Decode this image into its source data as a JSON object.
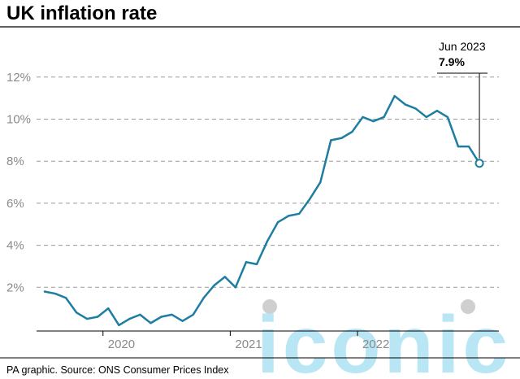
{
  "chart_data": {
    "type": "line",
    "title": "UK inflation rate",
    "source": "PA graphic. Source: ONS Consumer Prices Index",
    "watermark": "iconic",
    "y_unit": "%",
    "ylim": [
      0,
      13
    ],
    "y_ticks": [
      2,
      4,
      6,
      8,
      10,
      12
    ],
    "y_tick_labels": [
      "2%",
      "4%",
      "6%",
      "8%",
      "10%",
      "12%"
    ],
    "grid": "horizontal dashed",
    "x_tick_labels": [
      "2020",
      "2021",
      "2022"
    ],
    "x_tick_month_index": [
      6,
      18,
      30
    ],
    "line_color": "#1e7ea1",
    "series": [
      {
        "months": [
          "Jan 2020",
          "Feb 2020",
          "Mar 2020",
          "Apr 2020",
          "May 2020",
          "Jun 2020",
          "Jul 2020",
          "Aug 2020",
          "Sep 2020",
          "Oct 2020",
          "Nov 2020",
          "Dec 2020",
          "Jan 2021",
          "Feb 2021",
          "Mar 2021",
          "Apr 2021",
          "May 2021",
          "Jun 2021",
          "Jul 2021",
          "Aug 2021",
          "Sep 2021",
          "Oct 2021",
          "Nov 2021",
          "Dec 2021",
          "Jan 2022",
          "Feb 2022",
          "Mar 2022",
          "Apr 2022",
          "May 2022",
          "Jun 2022",
          "Jul 2022",
          "Aug 2022",
          "Sep 2022",
          "Oct 2022",
          "Nov 2022",
          "Dec 2022",
          "Jan 2023",
          "Feb 2023",
          "Mar 2023",
          "Apr 2023",
          "May 2023",
          "Jun 2023"
        ],
        "values": [
          1.8,
          1.7,
          1.5,
          0.8,
          0.5,
          0.6,
          1.0,
          0.2,
          0.5,
          0.7,
          0.3,
          0.6,
          0.7,
          0.4,
          0.7,
          1.5,
          2.1,
          2.5,
          2.0,
          3.2,
          3.1,
          4.2,
          5.1,
          5.4,
          5.5,
          6.2,
          7.0,
          9.0,
          9.1,
          9.4,
          10.1,
          9.9,
          10.1,
          11.1,
          10.7,
          10.5,
          10.1,
          10.4,
          10.1,
          8.7,
          8.7,
          7.9
        ]
      }
    ],
    "annotation": {
      "label": "Jun 2023",
      "value": "7.9%",
      "month_index": 41,
      "y": 7.9
    }
  }
}
